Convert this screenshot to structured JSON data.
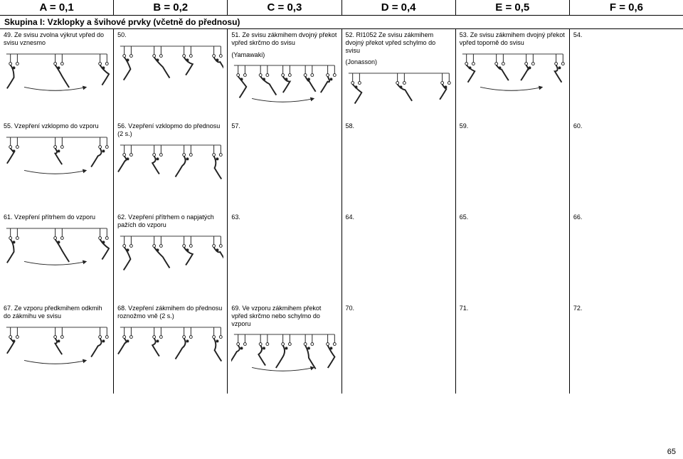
{
  "header": {
    "columns": [
      {
        "label": "A = 0,1"
      },
      {
        "label": "B = 0,2"
      },
      {
        "label": "C = 0,3"
      },
      {
        "label": "D = 0,4"
      },
      {
        "label": "E = 0,5"
      },
      {
        "label": "F = 0,6"
      }
    ]
  },
  "group_title": "Skupina I: Vzklopky a švihové prvky (včetně do přednosu)",
  "rows": [
    {
      "cells": [
        {
          "num": "49.",
          "text": "Ze svisu zvolna výkrut vpřed do svisu vznesmo",
          "sub": "",
          "has_fig": true
        },
        {
          "num": "50.",
          "text": "",
          "sub": "",
          "has_fig": true
        },
        {
          "num": "51.",
          "text": "Ze svisu zákmihem dvojný překot vpřed skrčmo do svisu",
          "sub": "(Yamawaki)",
          "has_fig": true
        },
        {
          "num": "52.",
          "text": "RI1052           Ze svisu zákmihem dvojný překot vpřed schylmo do svisu",
          "sub": "(Jonasson)",
          "has_fig": true
        },
        {
          "num": "53.",
          "text": "Ze svisu zákmihem dvojný překot vpřed toporně do svisu",
          "sub": "",
          "has_fig": true
        },
        {
          "num": "54.",
          "text": "",
          "sub": "",
          "has_fig": false
        }
      ]
    },
    {
      "cells": [
        {
          "num": "55.",
          "text": "Vzepření vzklopmo do vzporu",
          "sub": "",
          "has_fig": true
        },
        {
          "num": "56.",
          "text": "Vzepření vzklopmo do přednosu (2 s.)",
          "sub": "",
          "has_fig": true
        },
        {
          "num": "57.",
          "text": "",
          "sub": "",
          "has_fig": false
        },
        {
          "num": "58.",
          "text": "",
          "sub": "",
          "has_fig": false
        },
        {
          "num": "59.",
          "text": "",
          "sub": "",
          "has_fig": false
        },
        {
          "num": "60.",
          "text": "",
          "sub": "",
          "has_fig": false
        }
      ]
    },
    {
      "cells": [
        {
          "num": "61.",
          "text": "Vzepření přítrhem do vzporu",
          "sub": "",
          "has_fig": true
        },
        {
          "num": "62.",
          "text": "Vzepření přítrhem o napjatých pažích do vzporu",
          "sub": "",
          "has_fig": true
        },
        {
          "num": "63.",
          "text": "",
          "sub": "",
          "has_fig": false
        },
        {
          "num": "64.",
          "text": "",
          "sub": "",
          "has_fig": false
        },
        {
          "num": "65.",
          "text": "",
          "sub": "",
          "has_fig": false
        },
        {
          "num": "66.",
          "text": "",
          "sub": "",
          "has_fig": false
        }
      ]
    },
    {
      "cells": [
        {
          "num": "67.",
          "text": "Ze vzporu předkmihem odkmih do zákmihu ve svisu",
          "sub": "",
          "has_fig": true
        },
        {
          "num": "68.",
          "text": "Vzepření zákmihem do přednosu roznožmo vně (2 s.)",
          "sub": "",
          "has_fig": true
        },
        {
          "num": "69.",
          "text": "Ve vzporu zákmihem překot vpřed skrčmo nebo schylmo do vzporu",
          "sub": "",
          "has_fig": true
        },
        {
          "num": "70.",
          "text": "",
          "sub": "",
          "has_fig": false
        },
        {
          "num": "71.",
          "text": "",
          "sub": "",
          "has_fig": false
        },
        {
          "num": "72.",
          "text": "",
          "sub": "",
          "has_fig": false
        }
      ]
    }
  ],
  "page_number": "65",
  "colors": {
    "border": "#000000",
    "text": "#000000",
    "bg": "#ffffff",
    "stroke": "#1a1a1a"
  }
}
